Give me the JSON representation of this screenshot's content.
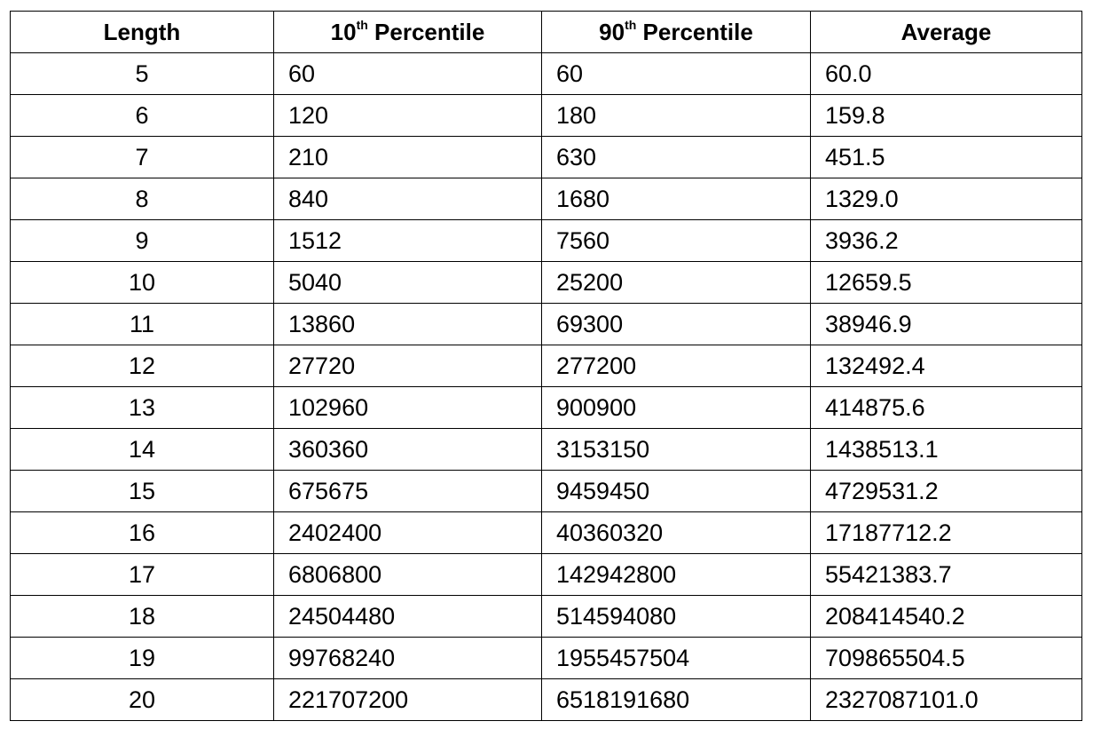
{
  "table": {
    "headers": [
      {
        "main": "Length",
        "sup": "",
        "rest": ""
      },
      {
        "main": "10",
        "sup": "th",
        "rest": " Percentile"
      },
      {
        "main": "90",
        "sup": "th",
        "rest": " Percentile"
      },
      {
        "main": "Average",
        "sup": "",
        "rest": ""
      }
    ],
    "rows": [
      [
        "5",
        "60",
        "60",
        "60.0"
      ],
      [
        "6",
        "120",
        "180",
        "159.8"
      ],
      [
        "7",
        "210",
        "630",
        "451.5"
      ],
      [
        "8",
        "840",
        "1680",
        "1329.0"
      ],
      [
        "9",
        "1512",
        "7560",
        "3936.2"
      ],
      [
        "10",
        "5040",
        "25200",
        "12659.5"
      ],
      [
        "11",
        "13860",
        "69300",
        "38946.9"
      ],
      [
        "12",
        "27720",
        "277200",
        "132492.4"
      ],
      [
        "13",
        "102960",
        "900900",
        "414875.6"
      ],
      [
        "14",
        "360360",
        "3153150",
        "1438513.1"
      ],
      [
        "15",
        "675675",
        "9459450",
        "4729531.2"
      ],
      [
        "16",
        "2402400",
        "40360320",
        "17187712.2"
      ],
      [
        "17",
        "6806800",
        "142942800",
        "55421383.7"
      ],
      [
        "18",
        "24504480",
        "514594080",
        "208414540.2"
      ],
      [
        "19",
        "99768240",
        "1955457504",
        "709865504.5"
      ],
      [
        "20",
        "221707200",
        "6518191680",
        "2327087101.0"
      ]
    ]
  }
}
